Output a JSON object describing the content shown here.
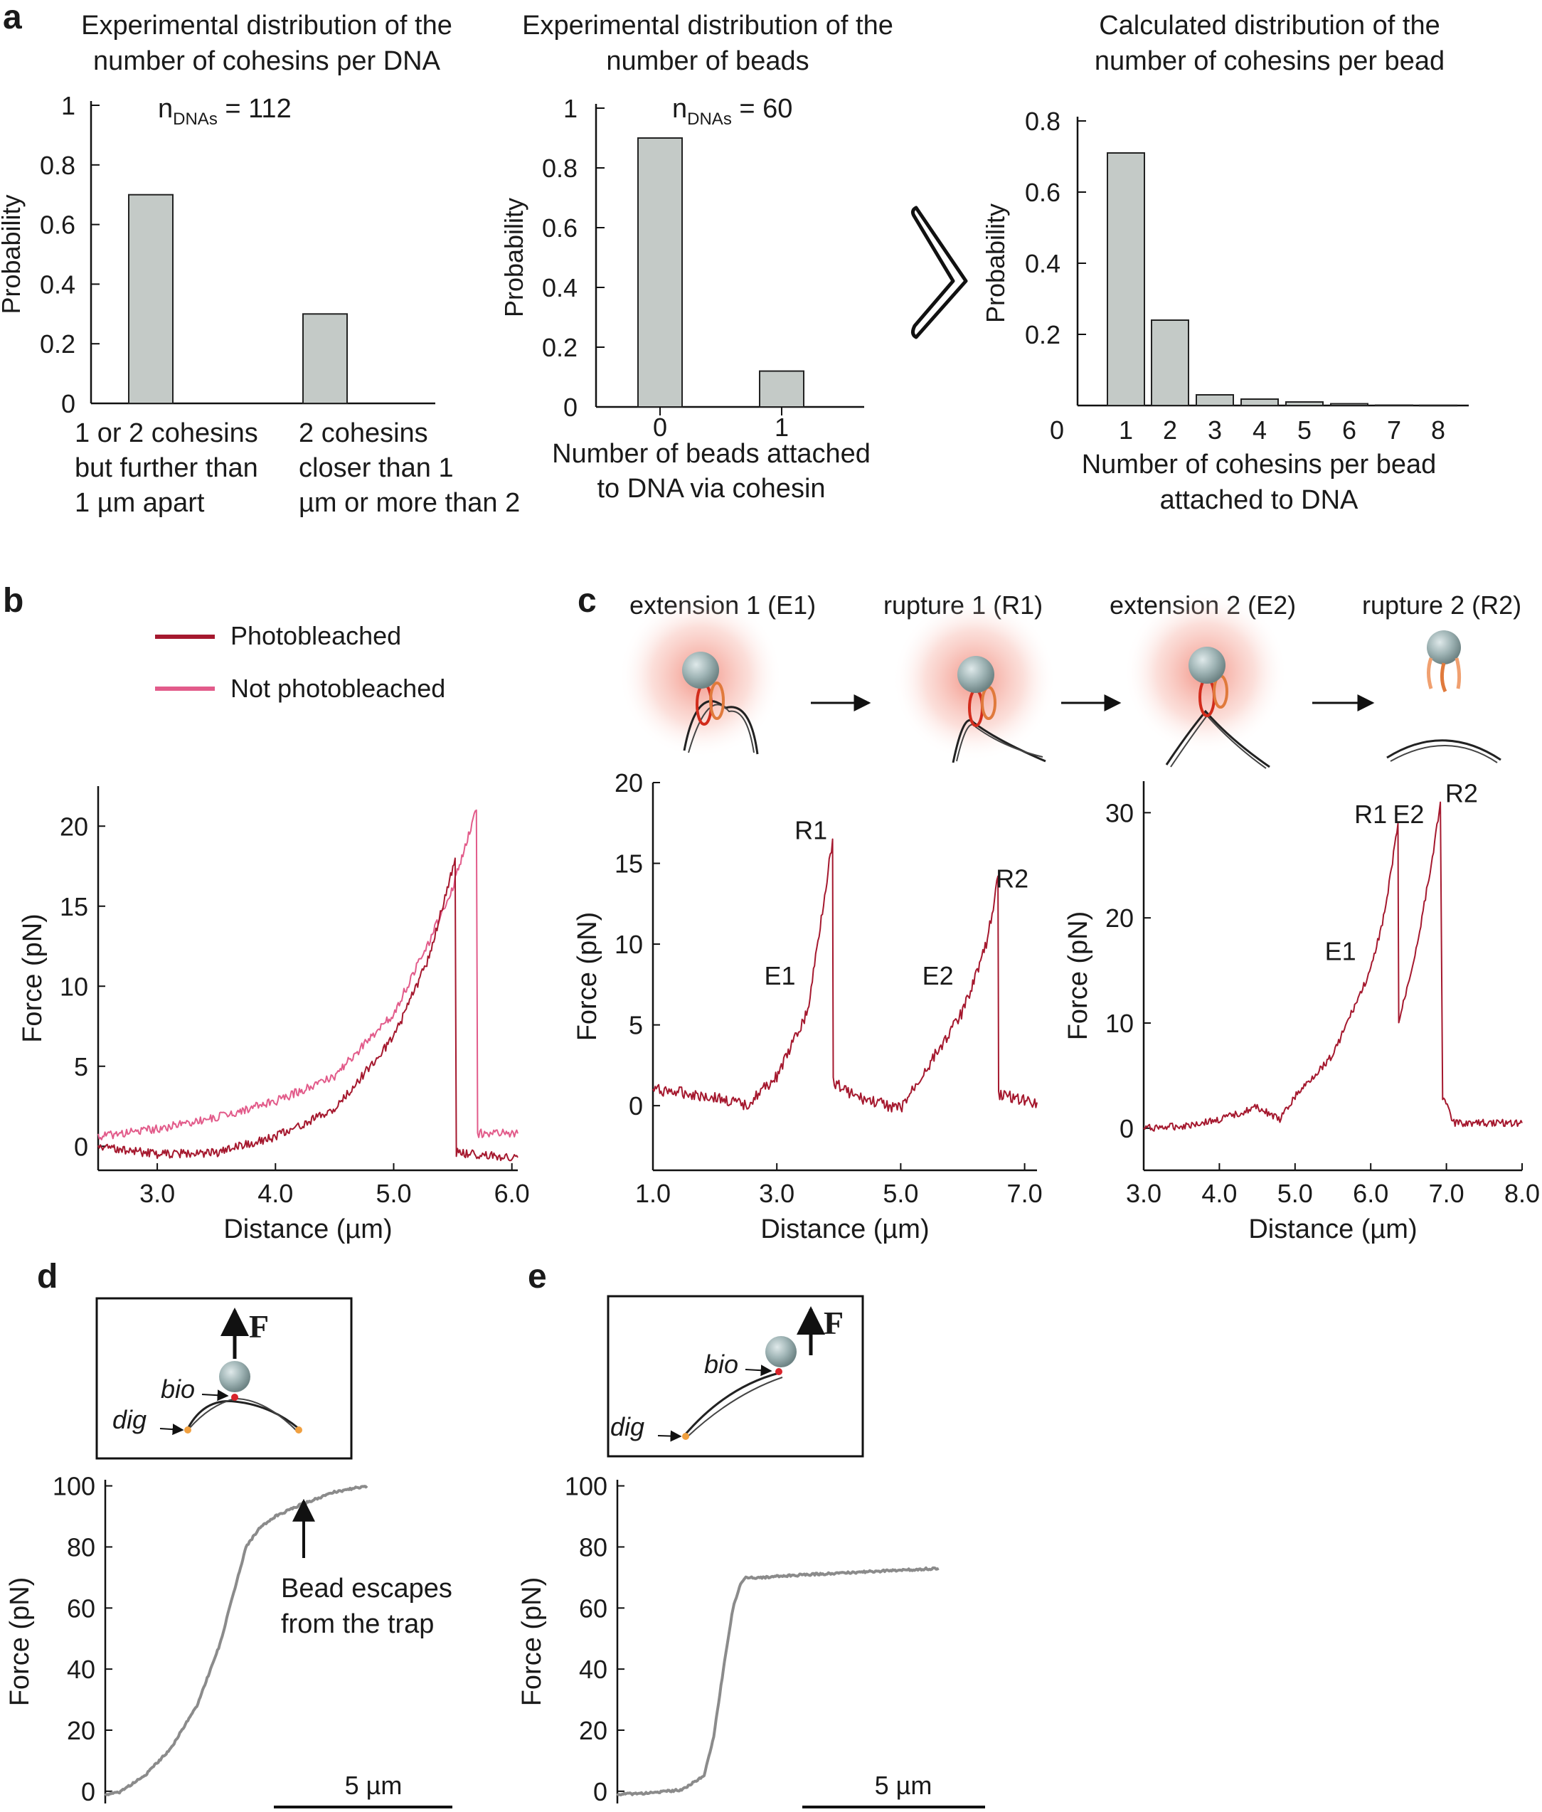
{
  "panels": {
    "a": "a",
    "b": "b",
    "c": "c",
    "d": "d",
    "e": "e"
  },
  "colors": {
    "bar": "#c4cac7",
    "photobleached": "#a5182e",
    "not_photobleached": "#e25b8a",
    "gray_trace": "#8b8b8b",
    "bead": "#9fb4b5"
  },
  "legend_b": {
    "photobleached": "Photobleached",
    "not_photobleached": "Not photobleached"
  },
  "schematic_c": {
    "steps": [
      "extension 1 (E1)",
      "rupture 1 (R1)",
      "extension 2 (E2)",
      "rupture 2 (R2)"
    ]
  },
  "schematic_d": {
    "force": "F",
    "bio": "bio",
    "dig": "dig"
  },
  "schematic_e": {
    "force": "F",
    "bio": "bio",
    "dig": "dig"
  },
  "chart_data": [
    {
      "id": "a1",
      "type": "bar",
      "title": [
        "Experimental distribution of the",
        "number of cohesins per DNA"
      ],
      "annotation": {
        "main": "n",
        "sub": "DNAs",
        "rest": " = 112"
      },
      "categories": [
        [
          "1 or 2 cohesins",
          "but further than",
          "1 µm apart"
        ],
        [
          "2 cohesins",
          "closer than 1",
          "µm or more than 2"
        ]
      ],
      "values": [
        0.7,
        0.3
      ],
      "ylabel": "Probability",
      "ylim": [
        0,
        1
      ],
      "yticks": [
        "0",
        "0.2",
        "0.4",
        "0.6",
        "0.8",
        "1"
      ],
      "ytick_values": [
        0,
        0.2,
        0.4,
        0.6,
        0.8,
        1
      ]
    },
    {
      "id": "a2",
      "type": "bar",
      "title": [
        "Experimental distribution of the",
        "number of beads"
      ],
      "annotation": {
        "main": "n",
        "sub": "DNAs",
        "rest": " = 60"
      },
      "categories": [
        "0",
        "1"
      ],
      "values": [
        0.9,
        0.12
      ],
      "xlabel": [
        "Number of beads attached",
        "to DNA via cohesin"
      ],
      "ylabel": "Probability",
      "ylim": [
        0,
        1
      ],
      "yticks": [
        "0",
        "0.2",
        "0.4",
        "0.6",
        "0.8",
        "1"
      ],
      "ytick_values": [
        0,
        0.2,
        0.4,
        0.6,
        0.8,
        1
      ]
    },
    {
      "id": "a3",
      "type": "bar",
      "title": [
        "Calculated distribution of the",
        "number of cohesins per bead"
      ],
      "categories": [
        "1",
        "2",
        "3",
        "4",
        "5",
        "6",
        "7",
        "8"
      ],
      "zero_label": "0",
      "values": [
        0.71,
        0.24,
        0.03,
        0.018,
        0.01,
        0.005,
        0.001,
        0.0005
      ],
      "xlabel": [
        "Number of cohesins per bead",
        "attached to DNA"
      ],
      "ylabel": "Probability",
      "ylim": [
        0,
        0.8
      ],
      "yticks": [
        "0.2",
        "0.4",
        "0.6",
        "0.8"
      ],
      "ytick_values": [
        0.2,
        0.4,
        0.6,
        0.8
      ]
    },
    {
      "id": "b",
      "type": "line",
      "xlabel": "Distance (µm)",
      "ylabel": "Force (pN)",
      "xlim": [
        2.5,
        6.05
      ],
      "ylim": [
        -1.5,
        22.5
      ],
      "xticks": [
        "3.0",
        "4.0",
        "5.0",
        "6.0"
      ],
      "xtick_values": [
        3,
        4,
        5,
        6
      ],
      "yticks": [
        "0",
        "5",
        "10",
        "15",
        "20"
      ],
      "ytick_values": [
        0,
        5,
        10,
        15,
        20
      ],
      "series": [
        {
          "name": "Not photobleached",
          "color": "not_photobleached",
          "x": [
            2.5,
            3.0,
            3.5,
            4.0,
            4.5,
            5.0,
            5.3,
            5.5,
            5.7,
            5.71,
            6.05
          ],
          "y": [
            0.6,
            1.1,
            1.8,
            2.8,
            4.4,
            8.3,
            12.8,
            16.2,
            21.0,
            0.8,
            0.8
          ]
        },
        {
          "name": "Photobleached",
          "color": "photobleached",
          "x": [
            2.5,
            3.0,
            3.5,
            4.0,
            4.5,
            5.0,
            5.3,
            5.52,
            5.53,
            6.05
          ],
          "y": [
            0,
            -0.5,
            -0.4,
            0.6,
            2.3,
            6.8,
            11.8,
            18.0,
            -0.4,
            -0.7
          ]
        }
      ]
    },
    {
      "id": "c1",
      "type": "line",
      "xlabel": "Distance (µm)",
      "ylabel": "Force (pN)",
      "xlim": [
        1.0,
        7.2
      ],
      "ylim": [
        -4,
        20
      ],
      "xticks": [
        "1.0",
        "3.0",
        "5.0",
        "7.0"
      ],
      "xtick_values": [
        1,
        3,
        5,
        7
      ],
      "yticks": [
        "0",
        "5",
        "10",
        "15",
        "20"
      ],
      "ytick_values": [
        0,
        5,
        10,
        15,
        20
      ],
      "annotations": [
        {
          "text": "R1",
          "x": 3.55,
          "y": 16.5
        },
        {
          "text": "E1",
          "x": 3.05,
          "y": 7.5
        },
        {
          "text": "E2",
          "x": 5.6,
          "y": 7.5
        },
        {
          "text": "R2",
          "x": 6.8,
          "y": 13.5
        }
      ],
      "series": [
        {
          "name": "trace",
          "color": "photobleached",
          "x": [
            1.0,
            1.5,
            2.0,
            2.5,
            3.0,
            3.5,
            3.9,
            3.91,
            4.3,
            5.0,
            5.5,
            6.0,
            6.4,
            6.57,
            6.58,
            7.2
          ],
          "y": [
            1.0,
            0.8,
            0.5,
            0.0,
            1.8,
            5.8,
            16.5,
            1.5,
            0.5,
            -0.2,
            2.8,
            5.8,
            10.2,
            14.2,
            0.7,
            0.2
          ]
        }
      ]
    },
    {
      "id": "c2",
      "type": "line",
      "xlabel": "Distance (µm)",
      "ylabel": "Force (pN)",
      "xlim": [
        3.0,
        8.0
      ],
      "ylim": [
        -4,
        33
      ],
      "xticks": [
        "3.0",
        "4.0",
        "5.0",
        "6.0",
        "7.0",
        "8.0"
      ],
      "xtick_values": [
        3,
        4,
        5,
        6,
        7,
        8
      ],
      "yticks": [
        "0",
        "10",
        "20",
        "30"
      ],
      "ytick_values": [
        0,
        10,
        20,
        30
      ],
      "annotations": [
        {
          "text": "R1",
          "x": 6.0,
          "y": 29
        },
        {
          "text": "E2",
          "x": 6.5,
          "y": 29
        },
        {
          "text": "R2",
          "x": 7.2,
          "y": 31
        },
        {
          "text": "E1",
          "x": 5.6,
          "y": 16
        }
      ],
      "series": [
        {
          "name": "trace",
          "color": "photobleached",
          "x": [
            3.0,
            3.5,
            4.0,
            4.5,
            4.8,
            5.0,
            5.5,
            6.0,
            6.2,
            6.36,
            6.37,
            6.6,
            6.8,
            6.92,
            6.95,
            7.1,
            7.5,
            8.0
          ],
          "y": [
            0,
            0.2,
            0.8,
            2.0,
            0.8,
            3.0,
            7.0,
            15.0,
            21.0,
            29.0,
            10.0,
            17.0,
            25.0,
            31.0,
            3.0,
            0.5,
            0.5,
            0.5
          ]
        }
      ]
    },
    {
      "id": "d",
      "type": "line",
      "ylabel": "Force (pN)",
      "ylim": [
        -4,
        102
      ],
      "yticks": [
        "0",
        "20",
        "40",
        "60",
        "80",
        "100"
      ],
      "ytick_values": [
        0,
        20,
        40,
        60,
        80,
        100
      ],
      "xlim": [
        0,
        12
      ],
      "scalebar": "5 µm",
      "annotation": [
        "Bead escapes",
        "from the trap"
      ],
      "series": [
        {
          "name": "trace",
          "color": "gray_trace",
          "x": [
            0,
            0.4,
            1.2,
            2.0,
            2.8,
            3.5,
            4.0,
            4.3,
            4.7,
            5.2,
            6.0,
            7.0,
            8.0
          ],
          "y": [
            -1,
            -0.5,
            5,
            14,
            28,
            48,
            68,
            80,
            86,
            90,
            94,
            98,
            100
          ]
        }
      ]
    },
    {
      "id": "e",
      "type": "line",
      "ylabel": "Force (pN)",
      "ylim": [
        -4,
        102
      ],
      "yticks": [
        "0",
        "20",
        "40",
        "60",
        "80",
        "100"
      ],
      "ytick_values": [
        0,
        20,
        40,
        60,
        80,
        100
      ],
      "xlim": [
        0,
        12
      ],
      "scalebar": "5 µm",
      "series": [
        {
          "name": "trace",
          "color": "gray_trace",
          "x": [
            0,
            1,
            2,
            2.7,
            3.0,
            3.3,
            3.6,
            3.8,
            4.0,
            4.5,
            6,
            8,
            9,
            10
          ],
          "y": [
            -1,
            -0.6,
            0.5,
            5,
            18,
            40,
            60,
            67,
            70,
            70,
            71,
            72,
            72.5,
            73
          ]
        }
      ]
    }
  ]
}
